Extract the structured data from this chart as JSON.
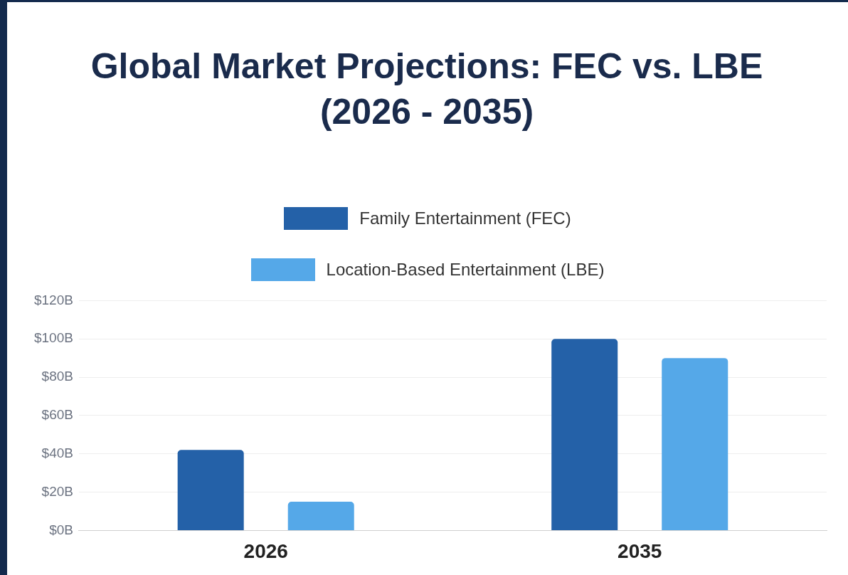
{
  "chart_data": {
    "type": "bar",
    "title": "Global Market Projections: FEC vs. LBE (2026 - 2035)",
    "categories": [
      "2026",
      "2035"
    ],
    "series": [
      {
        "name": "Family Entertainment (FEC)",
        "color": "#2461a8",
        "values": [
          42,
          100
        ]
      },
      {
        "name": "Location-Based Entertainment (LBE)",
        "color": "#55a8e8",
        "values": [
          15,
          90
        ]
      }
    ],
    "ylim": [
      0,
      120
    ],
    "yticks": [
      {
        "value": 0,
        "label": "$0B"
      },
      {
        "value": 20,
        "label": "$20B"
      },
      {
        "value": 40,
        "label": "$40B"
      },
      {
        "value": 60,
        "label": "$60B"
      },
      {
        "value": 80,
        "label": "$80B"
      },
      {
        "value": 100,
        "label": "$100B"
      },
      {
        "value": 120,
        "label": "$120B"
      }
    ],
    "grid": "y",
    "legend": "top"
  }
}
